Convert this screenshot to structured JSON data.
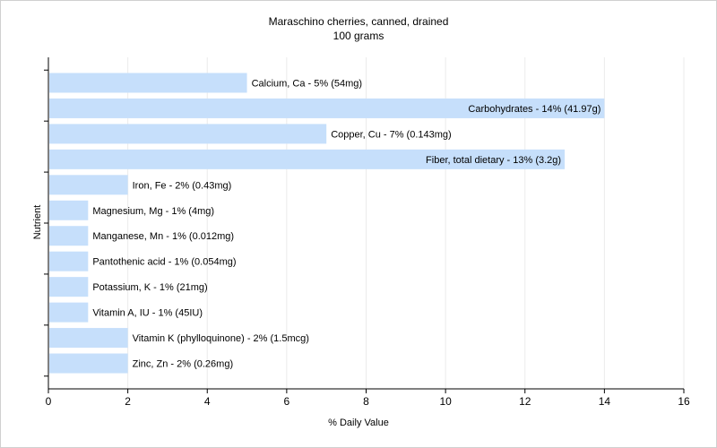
{
  "chart_data": {
    "type": "bar",
    "orientation": "horizontal",
    "title": "Maraschino cherries, canned, drained",
    "subtitle": "100 grams",
    "xlabel": "% Daily Value",
    "ylabel": "Nutrient",
    "xlim": [
      0,
      16
    ],
    "xticks": [
      0,
      2,
      4,
      6,
      8,
      10,
      12,
      14,
      16
    ],
    "grid": true,
    "bar_color": "#c6dffb",
    "bars": [
      {
        "label": "Calcium, Ca - 5% (54mg)",
        "value": 5
      },
      {
        "label": "Carbohydrates - 14% (41.97g)",
        "value": 14
      },
      {
        "label": "Copper, Cu - 7% (0.143mg)",
        "value": 7
      },
      {
        "label": "Fiber, total dietary - 13% (3.2g)",
        "value": 13
      },
      {
        "label": "Iron, Fe - 2% (0.43mg)",
        "value": 2
      },
      {
        "label": "Magnesium, Mg - 1% (4mg)",
        "value": 1
      },
      {
        "label": "Manganese, Mn - 1% (0.012mg)",
        "value": 1
      },
      {
        "label": "Pantothenic acid - 1% (0.054mg)",
        "value": 1
      },
      {
        "label": "Potassium, K - 1% (21mg)",
        "value": 1
      },
      {
        "label": "Vitamin A, IU - 1% (45IU)",
        "value": 1
      },
      {
        "label": "Vitamin K (phylloquinone) - 2% (1.5mcg)",
        "value": 2
      },
      {
        "label": "Zinc, Zn - 2% (0.26mg)",
        "value": 2
      }
    ]
  }
}
